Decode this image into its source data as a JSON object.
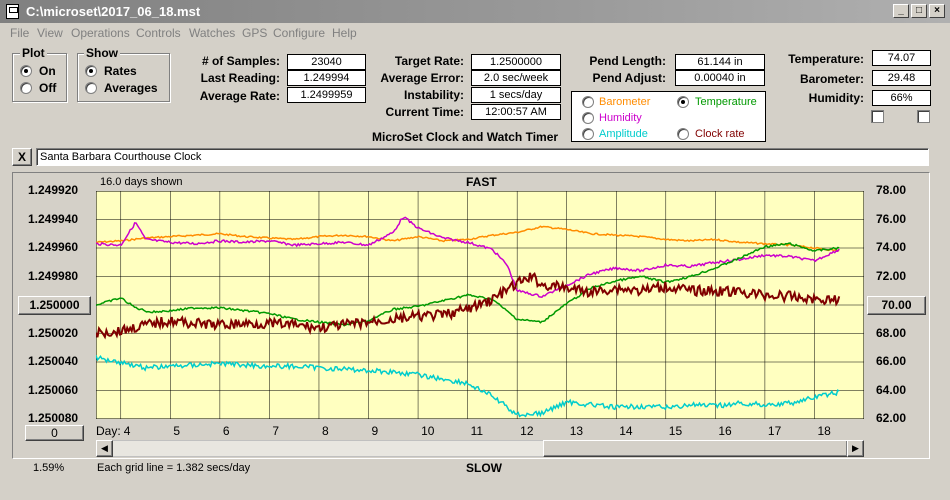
{
  "window": {
    "title": "C:\\microset\\2017_06_18.mst"
  },
  "menu": [
    "File",
    "View",
    "Operations",
    "Controls",
    "Watches",
    "GPS",
    "Configure",
    "Help"
  ],
  "plot": {
    "title": "Plot",
    "on": "On",
    "off": "Off",
    "selected": "On"
  },
  "show": {
    "title": "Show",
    "rates": "Rates",
    "averages": "Averages",
    "selected": "Rates"
  },
  "stats": {
    "samples_label": "# of Samples:",
    "samples": "23040",
    "last_label": "Last Reading:",
    "last": "1.249994",
    "avg_rate_label": "Average Rate:",
    "avg_rate": "1.2499959",
    "target_label": "Target Rate:",
    "target": "1.2500000",
    "avg_err_label": "Average Error:",
    "avg_err": "2.0 sec/week",
    "instab_label": "Instability:",
    "instab": "1 secs/day",
    "time_label": "Current Time:",
    "time": "12:00:57 AM",
    "pend_len_label": "Pend Length:",
    "pend_len": "61.144 in",
    "pend_adj_label": "Pend Adjust:",
    "pend_adj": "0.00040 in",
    "temp_label": "Temperature:",
    "temp": "74.07",
    "baro_label": "Barometer:",
    "baro": "29.48",
    "hum_label": "Humidity:",
    "hum": "66%"
  },
  "app_caption": "MicroSet Clock and Watch Timer",
  "sensor_options": {
    "barometer": "Barometer",
    "temperature": "Temperature",
    "humidity": "Humidity",
    "amplitude": "Amplitude",
    "clock_rate": "Clock rate",
    "selected": "Temperature",
    "colors": {
      "barometer": "#ff8c00",
      "temperature": "#009900",
      "humidity": "#cc00cc",
      "amplitude": "#00cccc",
      "clock_rate": "#800000"
    }
  },
  "clock_name": "Santa Barbara Courthouse Clock",
  "close_label": "X",
  "chart": {
    "days_shown": "16.0 days shown",
    "top_label": "FAST",
    "bottom_label": "SLOW",
    "grid_note": "Each grid line = 1.382 secs/day",
    "day_label": "Day:",
    "left_value_button": "1.250000",
    "right_value_button": "70.00",
    "bottom_button": "0",
    "percent": "1.59%",
    "bg": "#ffffc0"
  },
  "chart_data": {
    "type": "line",
    "x_ticks": [
      "4",
      "5",
      "6",
      "7",
      "8",
      "9",
      "10",
      "11",
      "12",
      "13",
      "14",
      "15",
      "16",
      "17",
      "18"
    ],
    "xlim": [
      3.5,
      19
    ],
    "left_axis": {
      "ticks": [
        "1.249920",
        "1.249940",
        "1.249960",
        "1.249980",
        "1.250000",
        "1.250020",
        "1.250040",
        "1.250060",
        "1.250080"
      ],
      "range": [
        1.24992,
        1.25008
      ],
      "inverted": true
    },
    "right_axis": {
      "ticks": [
        "78.00",
        "76.00",
        "74.00",
        "72.00",
        "70.00",
        "68.00",
        "66.00",
        "64.00",
        "62.00"
      ],
      "range": [
        62,
        78
      ]
    },
    "series": [
      {
        "key": "barometer",
        "axis": "right",
        "color": "#ff8c00",
        "x": [
          3.5,
          4,
          4.5,
          5,
          5.5,
          6,
          6.5,
          7,
          7.5,
          8,
          8.5,
          9,
          9.5,
          10,
          10.5,
          11,
          11.5,
          12,
          12.5,
          13,
          13.5,
          14,
          14.5,
          15,
          15.5,
          16,
          16.5,
          17,
          17.5,
          18,
          18.5
        ],
        "y": [
          74.4,
          74.5,
          74.7,
          74.8,
          74.9,
          75.0,
          74.8,
          74.7,
          74.6,
          74.8,
          74.9,
          74.8,
          74.5,
          74.8,
          74.5,
          74.6,
          74.9,
          75.1,
          75.5,
          75.3,
          75.0,
          74.9,
          74.8,
          74.6,
          74.5,
          74.6,
          74.4,
          74.3,
          74.2,
          74.0,
          73.8
        ]
      },
      {
        "key": "humidity",
        "axis": "right",
        "color": "#cc00cc",
        "x": [
          3.5,
          4,
          4.3,
          4.5,
          5,
          5.5,
          6,
          6.5,
          7,
          7.5,
          8,
          8.5,
          9,
          9.5,
          9.7,
          10,
          10.5,
          11,
          11.5,
          11.8,
          12,
          12.5,
          13,
          13.5,
          14,
          14.5,
          15,
          15.5,
          16,
          16.5,
          17,
          17.5,
          18,
          18.5
        ],
        "y": [
          74.3,
          74.2,
          75.8,
          74.6,
          74.4,
          74.3,
          74.5,
          74.4,
          74.5,
          74.2,
          74.3,
          74.4,
          74.2,
          75.1,
          76.2,
          75.4,
          74.7,
          74.4,
          73.9,
          72.8,
          71.0,
          70.6,
          71.4,
          72.2,
          72.6,
          72.4,
          72.8,
          72.7,
          73.0,
          73.2,
          73.5,
          73.4,
          73.1,
          73.9
        ]
      },
      {
        "key": "temperature",
        "axis": "right",
        "color": "#009900",
        "x": [
          3.5,
          4,
          4.3,
          4.6,
          5,
          5.5,
          6,
          6.5,
          7,
          7.5,
          8,
          8.5,
          9,
          9.5,
          10,
          10.5,
          11,
          11.5,
          12,
          12.5,
          13,
          13.5,
          14,
          14.5,
          15,
          15.5,
          16,
          16.5,
          17,
          17.5,
          18,
          18.5
        ],
        "y": [
          70.0,
          70.5,
          69.8,
          69.5,
          69.6,
          69.8,
          69.8,
          69.6,
          69.4,
          69.0,
          68.8,
          68.6,
          68.9,
          69.7,
          69.9,
          70.3,
          70.7,
          70.4,
          69.0,
          68.8,
          70.1,
          71.2,
          71.7,
          72.0,
          71.6,
          72.0,
          72.6,
          73.3,
          74.1,
          74.3,
          73.8,
          74.0
        ]
      },
      {
        "key": "clock_rate",
        "axis": "left",
        "color": "#800000",
        "x": [
          3.5,
          4,
          4.5,
          5,
          5.5,
          6,
          6.5,
          7,
          7.5,
          8,
          8.5,
          9,
          9.5,
          10,
          10.5,
          11,
          11.5,
          12,
          12.3,
          12.5,
          13,
          13.5,
          14,
          14.5,
          15,
          15.5,
          16,
          16.5,
          17,
          17.5,
          18,
          18.5
        ],
        "y": [
          1.25002,
          1.250018,
          1.250014,
          1.250011,
          1.250013,
          1.250014,
          1.250013,
          1.250013,
          1.250014,
          1.250016,
          1.250014,
          1.250012,
          1.25001,
          1.250008,
          1.250007,
          1.250003,
          1.249996,
          1.249985,
          1.24998,
          1.249986,
          1.249988,
          1.249991,
          1.249988,
          1.24999,
          1.249987,
          1.24999,
          1.24999,
          1.249991,
          1.249993,
          1.249994,
          1.249996,
          1.249996
        ]
      },
      {
        "key": "amplitude",
        "axis": "right",
        "color": "#00cccc",
        "x": [
          3.5,
          4,
          4.5,
          5,
          5.5,
          6,
          6.5,
          7,
          7.5,
          8,
          8.5,
          9,
          9.5,
          10,
          10.5,
          11,
          11.5,
          12,
          12.5,
          13,
          13.5,
          14,
          14.5,
          15,
          15.5,
          16,
          16.5,
          17,
          17.5,
          18,
          18.5
        ],
        "y": [
          66.3,
          66.0,
          65.6,
          65.7,
          65.8,
          65.9,
          65.8,
          65.7,
          65.7,
          65.6,
          65.5,
          65.4,
          65.3,
          65.1,
          64.8,
          64.5,
          63.6,
          62.3,
          62.4,
          63.2,
          63.0,
          62.8,
          62.9,
          62.8,
          63.0,
          62.9,
          63.1,
          63.0,
          63.1,
          63.5,
          63.9
        ]
      }
    ]
  }
}
